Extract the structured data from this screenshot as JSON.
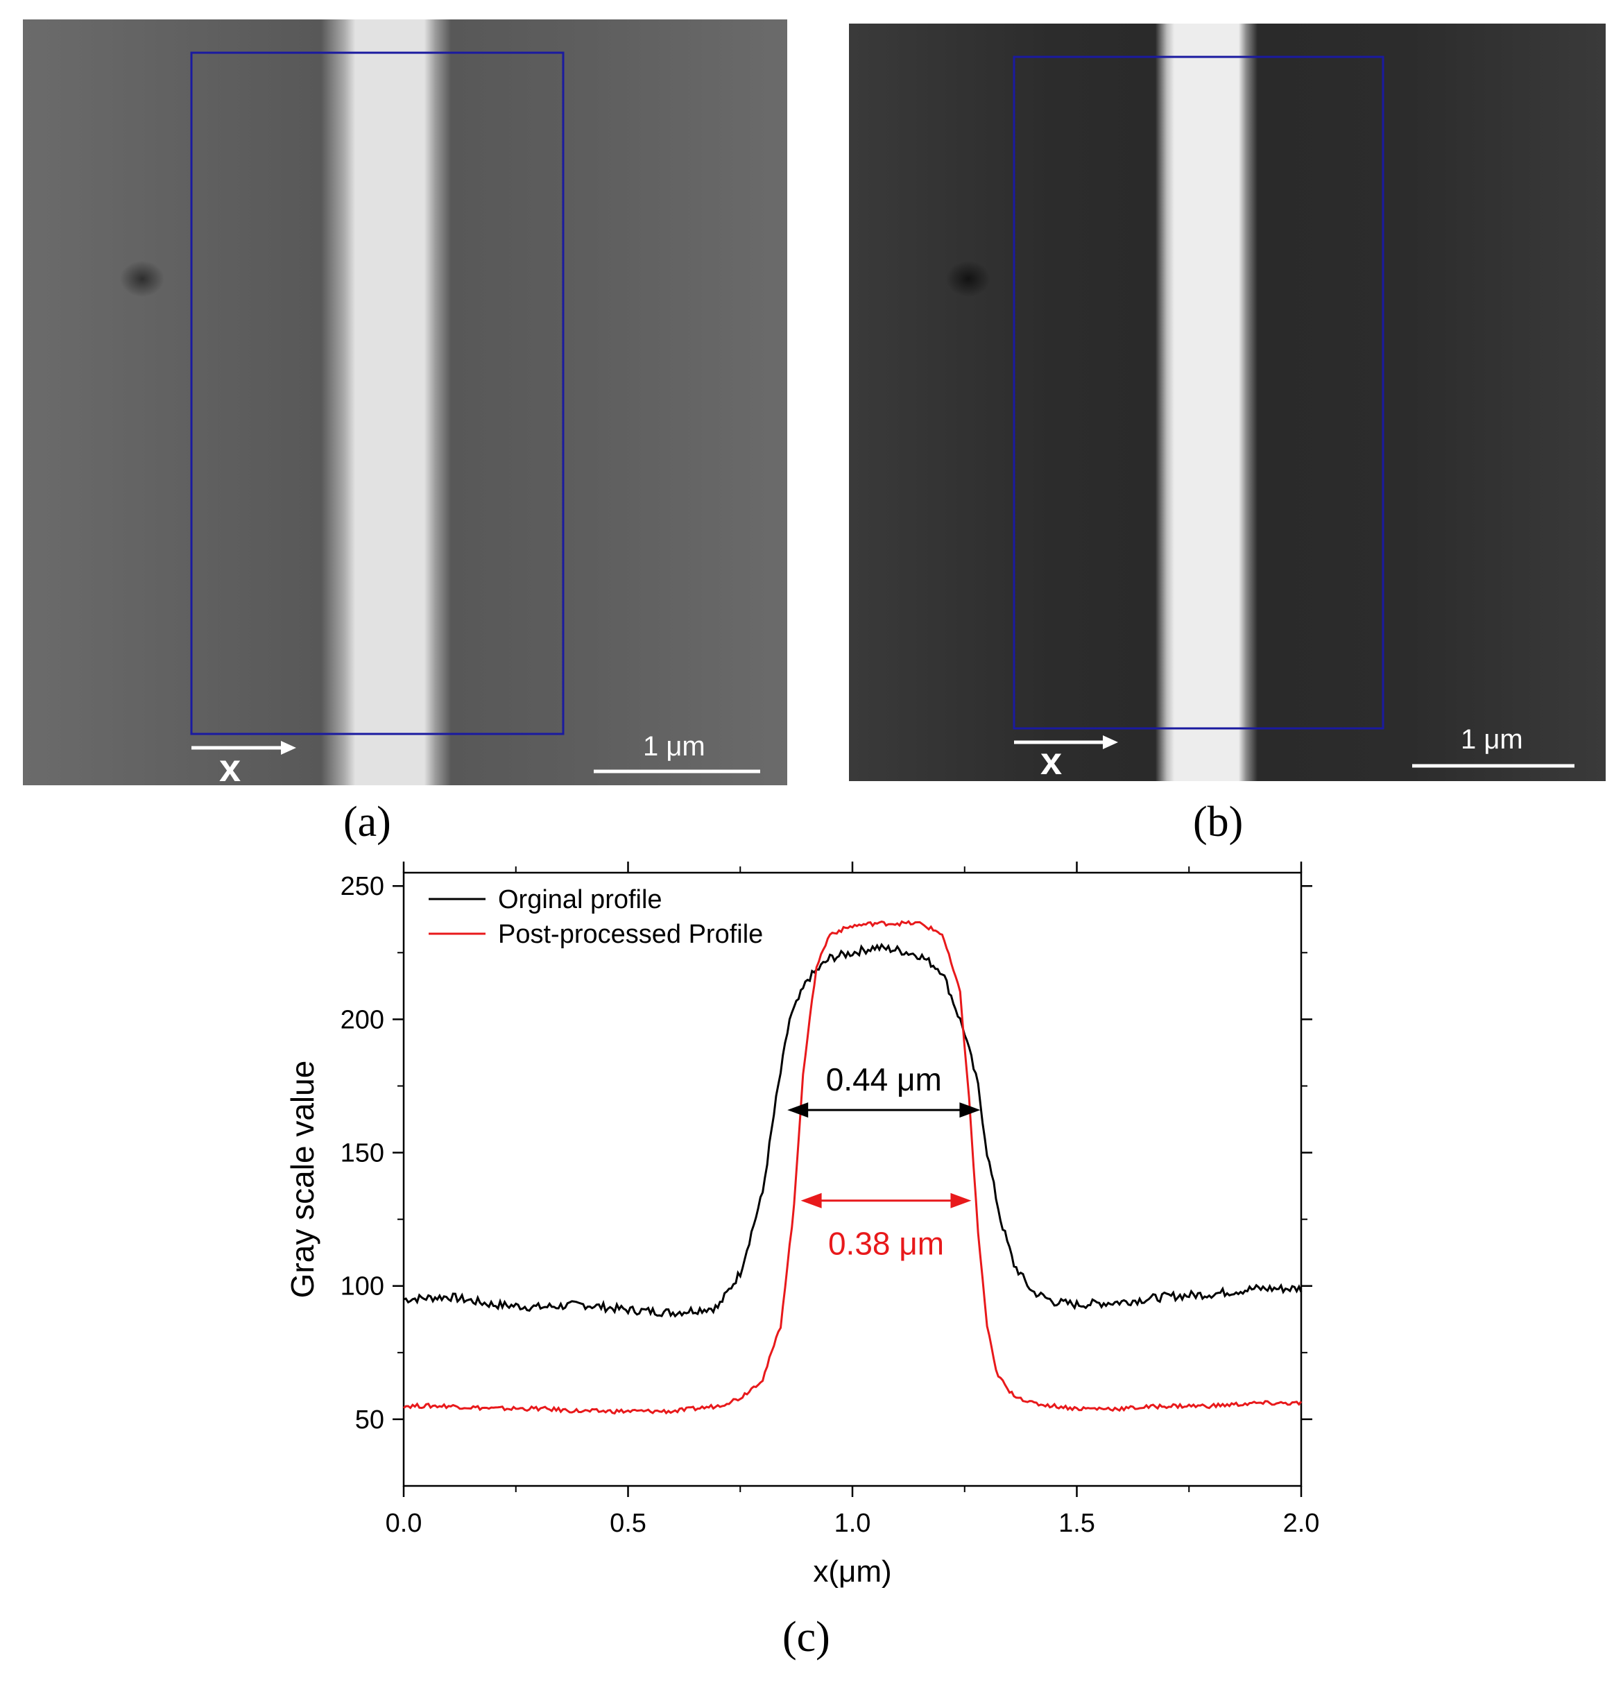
{
  "panels": {
    "a": {
      "label": "(a)",
      "scale_bar": "1 μm",
      "axis_label": "x"
    },
    "b": {
      "label": "(b)",
      "scale_bar": "1 μm",
      "axis_label": "x"
    },
    "c": {
      "label": "(c)"
    }
  },
  "colors": {
    "original": "#000000",
    "processed": "#e8191b",
    "roi_box": "#1a1aa0"
  },
  "chart_data": {
    "type": "line",
    "xlabel": "x(μm)",
    "ylabel": "Gray scale value",
    "xlim": [
      0.0,
      2.0
    ],
    "ylim": [
      25,
      255
    ],
    "xticks": [
      "0.0",
      "0.5",
      "1.0",
      "1.5",
      "2.0"
    ],
    "yticks": [
      "50",
      "100",
      "150",
      "200",
      "250"
    ],
    "legend_position": "top-left",
    "series": [
      {
        "name": "Orginal profile",
        "color": "#000000",
        "x": [
          0.0,
          0.1,
          0.2,
          0.3,
          0.4,
          0.5,
          0.6,
          0.7,
          0.75,
          0.8,
          0.83,
          0.86,
          0.9,
          0.95,
          1.0,
          1.05,
          1.1,
          1.15,
          1.2,
          1.25,
          1.28,
          1.3,
          1.33,
          1.36,
          1.4,
          1.45,
          1.5,
          1.6,
          1.7,
          1.8,
          1.9,
          2.0
        ],
        "y": [
          95,
          96,
          93,
          92,
          93,
          91,
          90,
          92,
          105,
          135,
          170,
          200,
          215,
          223,
          225,
          227,
          226,
          224,
          218,
          195,
          175,
          150,
          125,
          108,
          98,
          94,
          93,
          94,
          96,
          97,
          99,
          99
        ]
      },
      {
        "name": "Post-processed Profile",
        "color": "#e8191b",
        "x": [
          0.0,
          0.1,
          0.2,
          0.3,
          0.4,
          0.5,
          0.6,
          0.7,
          0.75,
          0.8,
          0.84,
          0.87,
          0.89,
          0.92,
          0.95,
          1.0,
          1.05,
          1.1,
          1.15,
          1.2,
          1.24,
          1.26,
          1.28,
          1.3,
          1.32,
          1.35,
          1.4,
          1.5,
          1.6,
          1.7,
          1.8,
          1.9,
          2.0
        ],
        "y": [
          55,
          55,
          54,
          54,
          53,
          53,
          53,
          55,
          58,
          65,
          85,
          130,
          180,
          220,
          232,
          235,
          236,
          236,
          236,
          232,
          210,
          170,
          120,
          85,
          68,
          60,
          56,
          54,
          54,
          55,
          55,
          56,
          56
        ]
      }
    ],
    "annotations": [
      {
        "text": "0.44 μm",
        "x1": 0.855,
        "x2": 1.285,
        "y": 166,
        "color": "#000000"
      },
      {
        "text": "0.38 μm",
        "x1": 0.885,
        "x2": 1.265,
        "y": 132,
        "color": "#e8191b"
      }
    ]
  }
}
